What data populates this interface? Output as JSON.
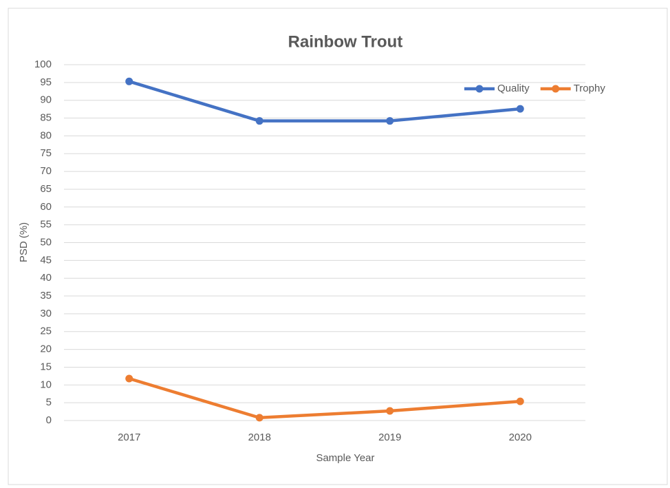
{
  "chart_data": {
    "type": "line",
    "title": "Rainbow Trout",
    "x_label": "Sample Year",
    "y_label": "PSD  (%)",
    "categories": [
      "2017",
      "2018",
      "2019",
      "2020"
    ],
    "series": [
      {
        "name": "Quality",
        "color": "#4472c4",
        "values": [
          95.3,
          84.2,
          84.2,
          87.6
        ]
      },
      {
        "name": "Trophy",
        "color": "#ed7d31",
        "values": [
          11.8,
          0.8,
          2.7,
          5.4
        ]
      }
    ],
    "ylim": [
      0,
      100
    ],
    "yticks": [
      0,
      5,
      10,
      15,
      20,
      25,
      30,
      35,
      40,
      45,
      50,
      55,
      60,
      65,
      70,
      75,
      80,
      85,
      90,
      95,
      100
    ],
    "grid": true,
    "legend": "top-right"
  }
}
